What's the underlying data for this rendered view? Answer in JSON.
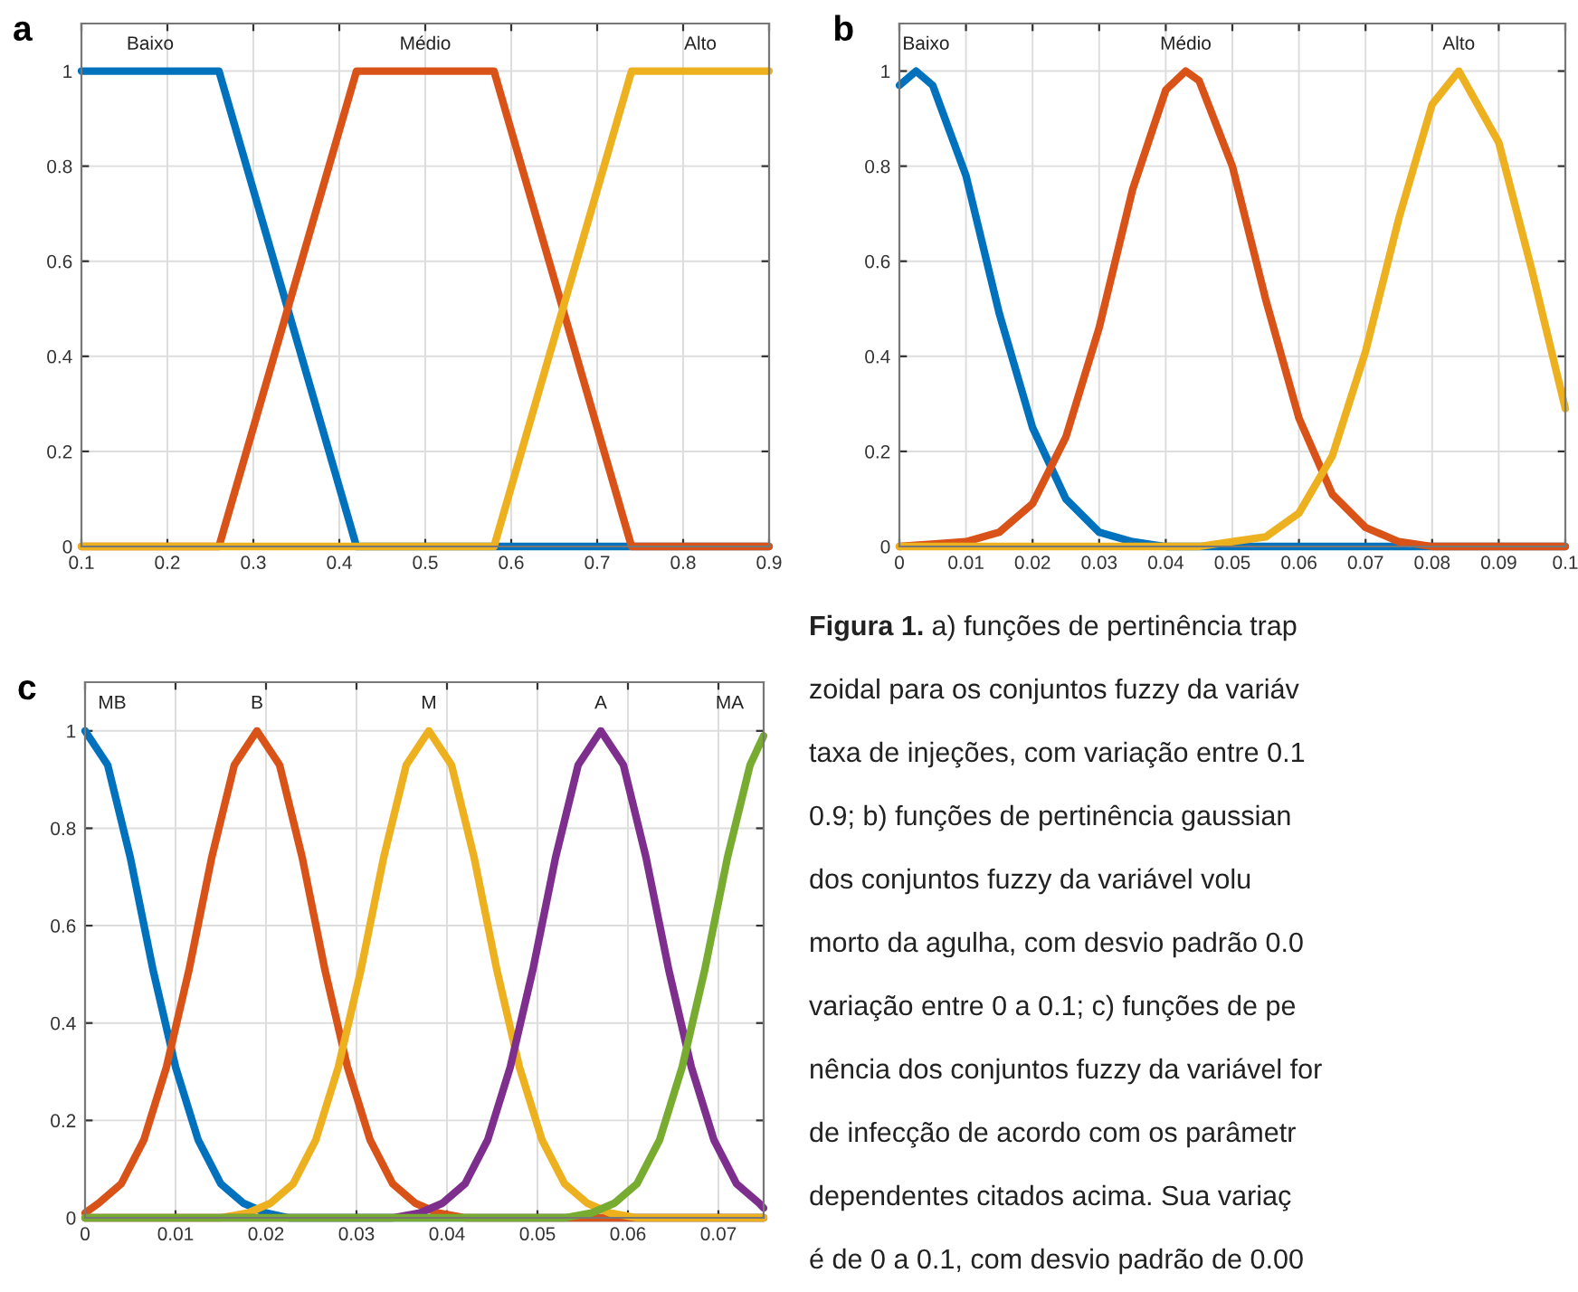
{
  "chart_data": [
    {
      "type": "line",
      "title": "a",
      "xlim": [
        0.1,
        0.9
      ],
      "ylim": [
        0,
        1.1
      ],
      "xticks": [
        0.1,
        0.2,
        0.3,
        0.4,
        0.5,
        0.6,
        0.7,
        0.8,
        0.9
      ],
      "yticks": [
        0,
        0.2,
        0.4,
        0.6,
        0.8,
        1
      ],
      "grid": true,
      "series": [
        {
          "name": "Baixo",
          "color": "#0072bd",
          "x": [
            0.1,
            0.26,
            0.42,
            0.9
          ],
          "values": [
            1,
            1,
            0,
            0
          ]
        },
        {
          "name": "Médio",
          "color": "#d95319",
          "x": [
            0.1,
            0.26,
            0.42,
            0.58,
            0.74,
            0.9
          ],
          "values": [
            0,
            0,
            1,
            1,
            0,
            0
          ]
        },
        {
          "name": "Alto",
          "color": "#edb120",
          "x": [
            0.1,
            0.58,
            0.74,
            0.9
          ],
          "values": [
            0,
            0,
            1,
            1
          ]
        }
      ]
    },
    {
      "type": "line",
      "title": "b",
      "xlim": [
        0,
        0.1
      ],
      "ylim": [
        0,
        1.1
      ],
      "xticks": [
        0,
        0.01,
        0.02,
        0.03,
        0.04,
        0.05,
        0.06,
        0.07,
        0.08,
        0.09,
        0.1
      ],
      "yticks": [
        0,
        0.2,
        0.4,
        0.6,
        0.8,
        1
      ],
      "grid": true,
      "series": [
        {
          "name": "Baixo",
          "color": "#0072bd",
          "x": [
            0,
            0.0025,
            0.005,
            0.01,
            0.015,
            0.02,
            0.025,
            0.03,
            0.035,
            0.04,
            0.1
          ],
          "values": [
            0.97,
            1,
            0.97,
            0.78,
            0.49,
            0.25,
            0.1,
            0.03,
            0.01,
            0,
            0
          ]
        },
        {
          "name": "Médio",
          "color": "#d95319",
          "x": [
            0,
            0.01,
            0.015,
            0.02,
            0.025,
            0.03,
            0.035,
            0.04,
            0.043,
            0.045,
            0.05,
            0.055,
            0.06,
            0.065,
            0.07,
            0.075,
            0.08,
            0.1
          ],
          "values": [
            0,
            0.01,
            0.03,
            0.09,
            0.23,
            0.46,
            0.75,
            0.96,
            1,
            0.98,
            0.8,
            0.52,
            0.27,
            0.11,
            0.04,
            0.01,
            0,
            0
          ]
        },
        {
          "name": "Alto",
          "color": "#edb120",
          "x": [
            0,
            0.045,
            0.05,
            0.055,
            0.06,
            0.065,
            0.07,
            0.075,
            0.08,
            0.084,
            0.09,
            0.095,
            0.1
          ],
          "values": [
            0,
            0,
            0.01,
            0.02,
            0.07,
            0.19,
            0.41,
            0.69,
            0.93,
            1,
            0.85,
            0.58,
            0.29
          ]
        }
      ]
    },
    {
      "type": "line",
      "title": "c",
      "xlim": [
        0,
        0.075
      ],
      "ylim": [
        0,
        1.1
      ],
      "xticks": [
        0,
        0.01,
        0.02,
        0.03,
        0.04,
        0.05,
        0.06,
        0.07
      ],
      "yticks": [
        0,
        0.2,
        0.4,
        0.6,
        0.8,
        1
      ],
      "grid": true,
      "series": [
        {
          "name": "MB",
          "color": "#0072bd",
          "x": [
            0,
            0.0025,
            0.005,
            0.0075,
            0.01,
            0.0125,
            0.015,
            0.0175,
            0.02,
            0.0225,
            0.075
          ],
          "values": [
            1,
            0.93,
            0.74,
            0.51,
            0.31,
            0.16,
            0.07,
            0.03,
            0.01,
            0,
            0
          ]
        },
        {
          "name": "B",
          "color": "#d95319",
          "x": [
            0,
            0.0015,
            0.004,
            0.0065,
            0.009,
            0.0115,
            0.014,
            0.0165,
            0.019,
            0.0215,
            0.024,
            0.0265,
            0.029,
            0.0315,
            0.034,
            0.0365,
            0.039,
            0.042,
            0.075
          ],
          "values": [
            0.01,
            0.03,
            0.07,
            0.16,
            0.31,
            0.51,
            0.74,
            0.93,
            1,
            0.93,
            0.74,
            0.51,
            0.31,
            0.16,
            0.07,
            0.03,
            0.01,
            0,
            0
          ]
        },
        {
          "name": "M",
          "color": "#edb120",
          "x": [
            0,
            0.015,
            0.018,
            0.0205,
            0.023,
            0.0255,
            0.028,
            0.0305,
            0.033,
            0.0355,
            0.038,
            0.0405,
            0.043,
            0.0455,
            0.048,
            0.0505,
            0.053,
            0.0555,
            0.058,
            0.061,
            0.075
          ],
          "values": [
            0,
            0,
            0.01,
            0.03,
            0.07,
            0.16,
            0.31,
            0.51,
            0.74,
            0.93,
            1,
            0.93,
            0.74,
            0.51,
            0.31,
            0.16,
            0.07,
            0.03,
            0.01,
            0,
            0
          ]
        },
        {
          "name": "A",
          "color": "#7e2f8e",
          "x": [
            0,
            0.034,
            0.037,
            0.0395,
            0.042,
            0.0445,
            0.047,
            0.0495,
            0.052,
            0.0545,
            0.057,
            0.0595,
            0.062,
            0.0645,
            0.067,
            0.0695,
            0.072,
            0.0745,
            0.075
          ],
          "values": [
            0,
            0,
            0.01,
            0.03,
            0.07,
            0.16,
            0.31,
            0.51,
            0.74,
            0.93,
            1,
            0.93,
            0.74,
            0.51,
            0.31,
            0.16,
            0.07,
            0.03,
            0.02
          ]
        },
        {
          "name": "MA",
          "color": "#77ac30",
          "x": [
            0,
            0.053,
            0.056,
            0.0585,
            0.061,
            0.0635,
            0.066,
            0.0685,
            0.071,
            0.0735,
            0.075
          ],
          "values": [
            0,
            0,
            0.01,
            0.03,
            0.07,
            0.16,
            0.31,
            0.51,
            0.74,
            0.93,
            0.99
          ]
        }
      ],
      "annotations": [
        "Figura 1.",
        "a) funções de pertinência trap\nzoidal para os conjuntos fuzzy da variáv\ntaxa de injeções, com variação entre 0.1\n0.9; b) funções de pertinência gaussian\ndos conjuntos fuzzy da variável volu\nmorto da agulha, com desvio padrão 0.0\nvariação entre 0 a 0.1; c) funções de pe\nnência dos conjuntos fuzzy da variável for\nde infecção de acordo com os parâmetr\ndependentes citados acima. Sua variaç\né de 0 a 0.1, com desvio padrão de 0.00"
      ]
    }
  ]
}
